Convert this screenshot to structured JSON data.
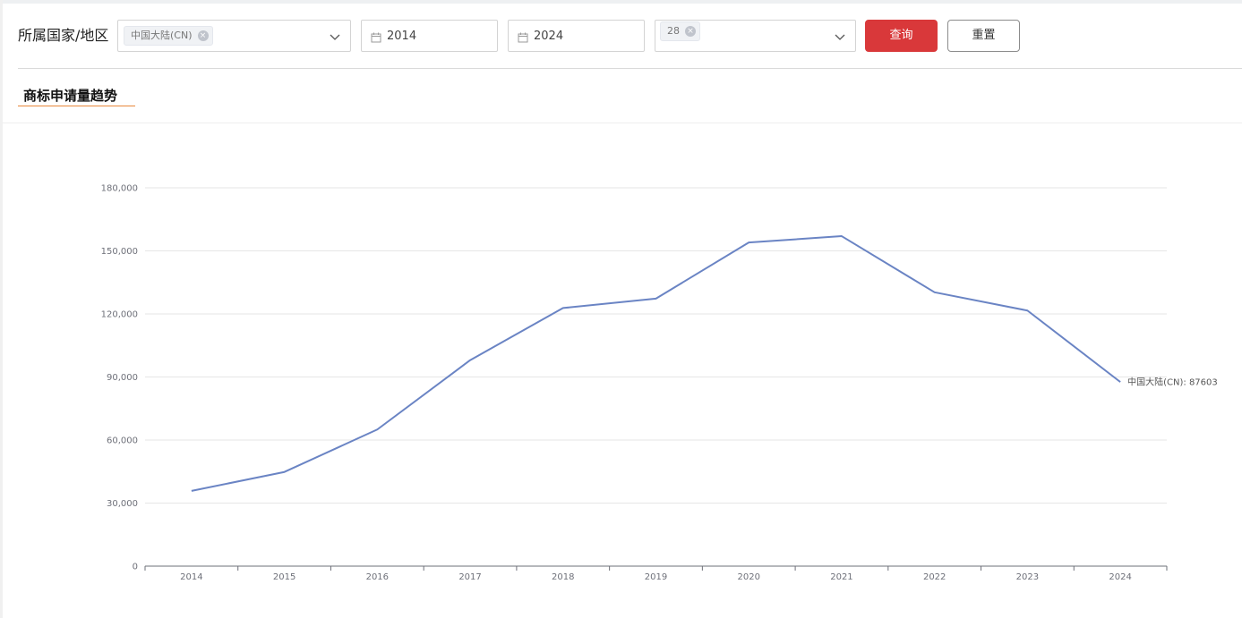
{
  "filters": {
    "country_label": "所属国家/地区",
    "country_tag": "中国大陆(CN)",
    "date_from": "2014",
    "date_to": "2024",
    "class_tag": "28",
    "query_button": "查询",
    "reset_button": "重置",
    "tag_close_glyph": "×"
  },
  "section": {
    "title": "商标申请量趋势"
  },
  "chart_data": {
    "type": "line",
    "title": "",
    "xlabel": "",
    "ylabel": "",
    "categories": [
      "2014",
      "2015",
      "2016",
      "2017",
      "2018",
      "2019",
      "2020",
      "2021",
      "2022",
      "2023",
      "2024"
    ],
    "series": [
      {
        "name": "中国大陆(CN)",
        "values": [
          35800,
          44800,
          65000,
          98000,
          122800,
          127300,
          154000,
          157000,
          130300,
          121600,
          87603
        ],
        "color": "#6a84c4"
      }
    ],
    "ylim": [
      0,
      180000
    ],
    "yticks": [
      0,
      30000,
      60000,
      90000,
      120000,
      150000,
      180000
    ],
    "ytick_labels": [
      "0",
      "30,000",
      "60,000",
      "90,000",
      "120,000",
      "150,000",
      "180,000"
    ],
    "end_label": "中国大陆(CN): 87603",
    "grid": true,
    "legend": "none"
  }
}
